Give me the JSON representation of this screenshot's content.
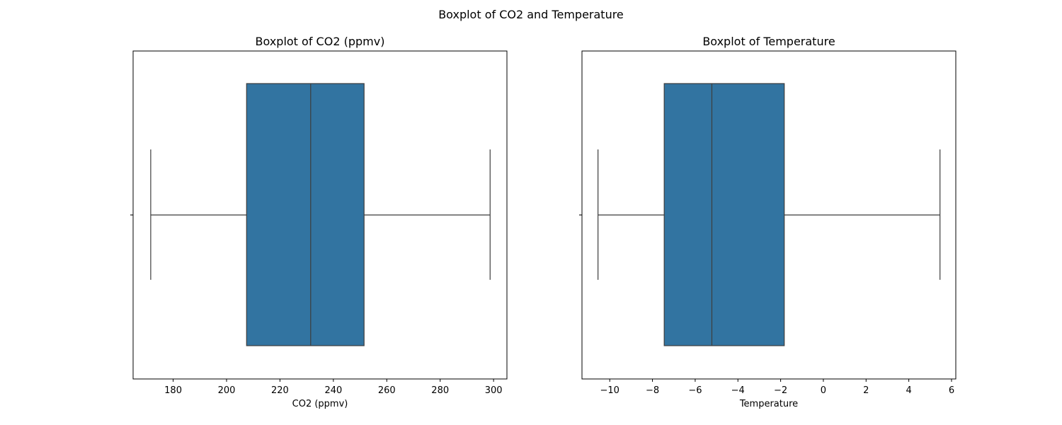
{
  "figure": {
    "suptitle": "Boxplot of CO2 and Temperature"
  },
  "colors": {
    "box_fill": "#3274a1",
    "line": "#3d3d3d",
    "axes": "#000000",
    "background": "#ffffff"
  },
  "chart_data": [
    {
      "type": "boxplot",
      "title": "Boxplot of CO2 (ppmv)",
      "xlabel": "CO2 (ppmv)",
      "ylabel": "",
      "xlim": [
        165,
        305
      ],
      "xticks": [
        180,
        200,
        220,
        240,
        260,
        280,
        300
      ],
      "xtick_labels": [
        "180",
        "200",
        "220",
        "240",
        "260",
        "280",
        "300"
      ],
      "box": {
        "whisker_low": 171.6,
        "q1": 207.5,
        "median": 231.5,
        "q3": 251.5,
        "whisker_high": 298.7
      }
    },
    {
      "type": "boxplot",
      "title": "Boxplot of Temperature",
      "xlabel": "Temperature",
      "ylabel": "",
      "xlim": [
        -11.3,
        6.2
      ],
      "xticks": [
        -10,
        -8,
        -6,
        -4,
        -2,
        0,
        2,
        4,
        6
      ],
      "xtick_labels": [
        "−10",
        "−8",
        "−6",
        "−4",
        "−2",
        "0",
        "2",
        "4",
        "6"
      ],
      "box": {
        "whisker_low": -10.55,
        "q1": -7.45,
        "median": -5.22,
        "q3": -1.83,
        "whisker_high": 5.46
      }
    }
  ]
}
